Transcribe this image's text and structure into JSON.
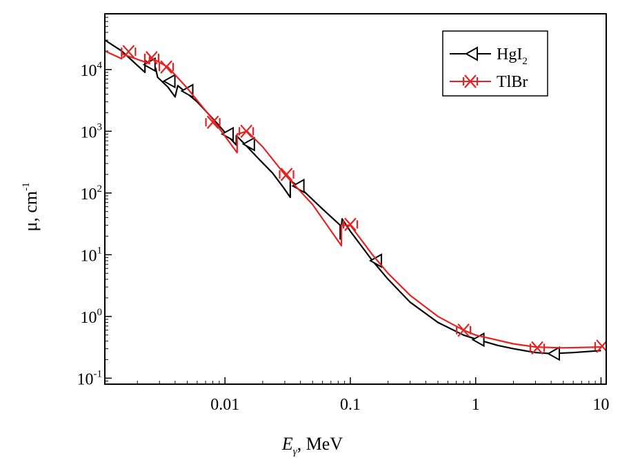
{
  "chart_data": {
    "type": "line",
    "xlabel_main": "E",
    "xlabel_sub": "γ",
    "xlabel_unit": ", MeV",
    "ylabel_main": "μ, cm",
    "ylabel_exp": "-1",
    "xscale": "log",
    "yscale": "log",
    "xlim": [
      0.0011,
      11
    ],
    "ylim": [
      0.08,
      80000
    ],
    "x_ticks": [
      {
        "value": 0.01,
        "label": "0.01"
      },
      {
        "value": 0.1,
        "label": "0.1"
      },
      {
        "value": 1,
        "label": "1"
      },
      {
        "value": 10,
        "label": "10"
      }
    ],
    "y_ticks": [
      {
        "value": 0.1,
        "base": "10",
        "exp": "-1"
      },
      {
        "value": 1,
        "base": "10",
        "exp": "0"
      },
      {
        "value": 10,
        "base": "10",
        "exp": "1"
      },
      {
        "value": 100,
        "base": "10",
        "exp": "2"
      },
      {
        "value": 1000,
        "base": "10",
        "exp": "3"
      },
      {
        "value": 10000,
        "base": "10",
        "exp": "4"
      }
    ],
    "legend_position": "top-right",
    "series": [
      {
        "name_main": "HgI",
        "name_sub": "2",
        "color": "#000000",
        "marker": "left-triangle",
        "line": [
          [
            0.0011,
            30000
          ],
          [
            0.0015,
            20000
          ],
          [
            0.0023,
            9000
          ],
          [
            0.0023,
            14000
          ],
          [
            0.0028,
            10500
          ],
          [
            0.0029,
            7500
          ],
          [
            0.0035,
            5200
          ],
          [
            0.004,
            3600
          ],
          [
            0.0042,
            5500
          ],
          [
            0.006,
            3000
          ],
          [
            0.0085,
            1400
          ],
          [
            0.0105,
            850
          ],
          [
            0.0123,
            600
          ],
          [
            0.0123,
            850
          ],
          [
            0.0146,
            600
          ],
          [
            0.0185,
            360
          ],
          [
            0.024,
            210
          ],
          [
            0.0295,
            120
          ],
          [
            0.0332,
            85
          ],
          [
            0.0332,
            160
          ],
          [
            0.04,
            120
          ],
          [
            0.06,
            55
          ],
          [
            0.083,
            30
          ],
          [
            0.083,
            18
          ],
          [
            0.086,
            38
          ],
          [
            0.1,
            24
          ],
          [
            0.15,
            8
          ],
          [
            0.2,
            4
          ],
          [
            0.3,
            1.7
          ],
          [
            0.5,
            0.8
          ],
          [
            0.8,
            0.5
          ],
          [
            1,
            0.43
          ],
          [
            1.5,
            0.34
          ],
          [
            2,
            0.3
          ],
          [
            3,
            0.26
          ],
          [
            4,
            0.25
          ],
          [
            6,
            0.26
          ],
          [
            10,
            0.28
          ]
        ],
        "markers": [
          [
            0.0025,
            12000
          ],
          [
            0.0036,
            6500
          ],
          [
            0.005,
            4500
          ],
          [
            0.0105,
            900
          ],
          [
            0.0155,
            620
          ],
          [
            0.0385,
            130
          ],
          [
            0.16,
            8
          ],
          [
            1.05,
            0.42
          ],
          [
            4.2,
            0.25
          ]
        ]
      },
      {
        "name_main": "TlBr",
        "name_sub": "",
        "color": "#e82020",
        "marker": "cross-x",
        "line": [
          [
            0.0011,
            20000
          ],
          [
            0.0015,
            15000
          ],
          [
            0.0015,
            18000
          ],
          [
            0.0025,
            12500
          ],
          [
            0.0025,
            16000
          ],
          [
            0.0035,
            11000
          ],
          [
            0.005,
            5000
          ],
          [
            0.008,
            1550
          ],
          [
            0.0125,
            450
          ],
          [
            0.0125,
            900
          ],
          [
            0.015,
            1000
          ],
          [
            0.02,
            560
          ],
          [
            0.03,
            200
          ],
          [
            0.05,
            65
          ],
          [
            0.085,
            14
          ],
          [
            0.085,
            30
          ],
          [
            0.1,
            30
          ],
          [
            0.15,
            10
          ],
          [
            0.2,
            5
          ],
          [
            0.3,
            2.2
          ],
          [
            0.5,
            1
          ],
          [
            0.8,
            0.6
          ],
          [
            1,
            0.5
          ],
          [
            2,
            0.36
          ],
          [
            3,
            0.32
          ],
          [
            5,
            0.31
          ],
          [
            10,
            0.32
          ]
        ],
        "markers": [
          [
            0.0017,
            19500
          ],
          [
            0.0026,
            15500
          ],
          [
            0.0034,
            11000
          ],
          [
            0.008,
            1400
          ],
          [
            0.0148,
            1000
          ],
          [
            0.031,
            200
          ],
          [
            0.1,
            31
          ],
          [
            0.8,
            0.6
          ],
          [
            3.1,
            0.31
          ],
          [
            10.2,
            0.33
          ]
        ]
      }
    ]
  }
}
